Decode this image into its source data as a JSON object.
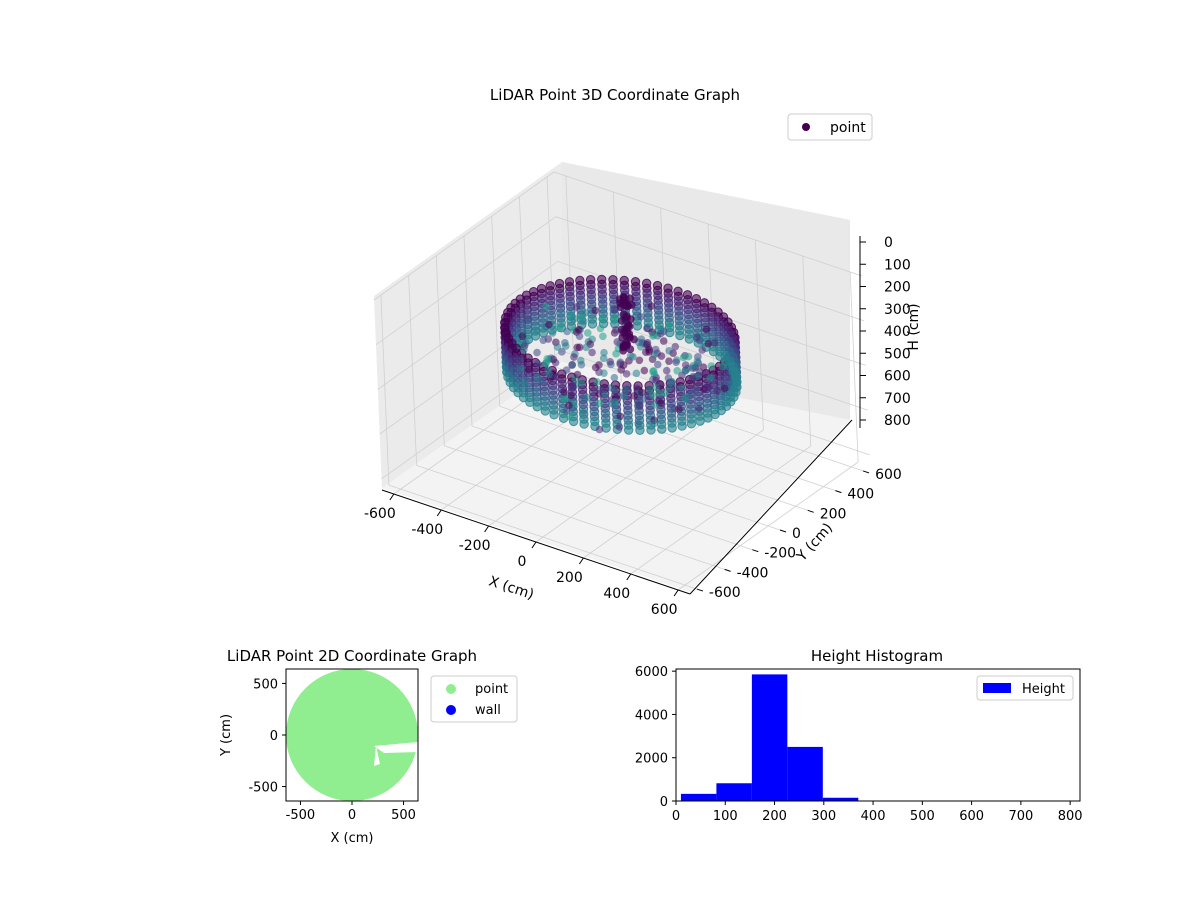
{
  "chart_data": [
    {
      "type": "scatter",
      "title": "LiDAR Point 3D Coordinate Graph",
      "xlabel": "X (cm)",
      "ylabel": "Y (cm)",
      "zlabel": "H (cm)",
      "xlim": [
        -650,
        650
      ],
      "ylim": [
        -650,
        650
      ],
      "zlim": [
        0,
        850
      ],
      "z_inverted": true,
      "x_ticks": [
        "-600",
        "-400",
        "-200",
        "0",
        "200",
        "400",
        "600"
      ],
      "y_ticks": [
        "600",
        "400",
        "200",
        "0",
        "-200",
        "-400",
        "-600"
      ],
      "z_ticks": [
        "0",
        "100",
        "200",
        "300",
        "400",
        "500",
        "600",
        "700",
        "800"
      ],
      "legend": [
        "point"
      ],
      "legend_position": "top-right",
      "colormap": "viridis",
      "grid": true,
      "series": [
        {
          "name": "point",
          "color": "#440154",
          "description_shape": "ring",
          "ring_radius": 420,
          "height_range": [
            200,
            400
          ]
        }
      ]
    },
    {
      "type": "scatter",
      "title": "LiDAR Point 2D Coordinate Graph",
      "xlabel": "X (cm)",
      "ylabel": "Y (cm)",
      "xlim": [
        -640,
        640
      ],
      "ylim": [
        -640,
        640
      ],
      "x_ticks": [
        "-500",
        "0",
        "500"
      ],
      "y_ticks": [
        "500",
        "0",
        "-500"
      ],
      "legend": [
        "point",
        "wall"
      ],
      "legend_position": "outside-right",
      "series": [
        {
          "name": "point",
          "color": "#90ee90",
          "radius": 640
        },
        {
          "name": "wall",
          "color": "#0000ff"
        }
      ]
    },
    {
      "type": "bar",
      "title": "Height Histogram",
      "xlabel": "",
      "ylabel": "",
      "xlim": [
        0,
        820
      ],
      "ylim": [
        0,
        6100
      ],
      "x_ticks": [
        "0",
        "100",
        "200",
        "300",
        "400",
        "500",
        "600",
        "700",
        "800"
      ],
      "y_ticks": [
        "0",
        "2000",
        "4000",
        "6000"
      ],
      "legend": [
        "Height"
      ],
      "legend_position": "top-right",
      "color": "#0000ff",
      "bins": [
        {
          "start": 10,
          "end": 82,
          "count": 330
        },
        {
          "start": 82,
          "end": 154,
          "count": 820
        },
        {
          "start": 154,
          "end": 226,
          "count": 5850
        },
        {
          "start": 226,
          "end": 298,
          "count": 2500
        },
        {
          "start": 298,
          "end": 370,
          "count": 150
        },
        {
          "start": 370,
          "end": 442,
          "count": 8
        },
        {
          "start": 442,
          "end": 514,
          "count": 4
        },
        {
          "start": 514,
          "end": 586,
          "count": 3
        },
        {
          "start": 586,
          "end": 658,
          "count": 2
        },
        {
          "start": 658,
          "end": 730,
          "count": 2
        },
        {
          "start": 730,
          "end": 802,
          "count": 3
        }
      ]
    }
  ]
}
